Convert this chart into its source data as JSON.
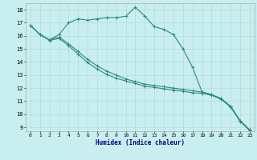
{
  "title": "",
  "xlabel": "Humidex (Indice chaleur)",
  "ylabel": "",
  "bg_color": "#c8eef0",
  "grid_color": "#b8dfe0",
  "line_color": "#2e8b7a",
  "xlim": [
    -0.5,
    23.5
  ],
  "ylim": [
    8.7,
    18.5
  ],
  "yticks": [
    9,
    10,
    11,
    12,
    13,
    14,
    15,
    16,
    17,
    18
  ],
  "xticks": [
    0,
    1,
    2,
    3,
    4,
    5,
    6,
    7,
    8,
    9,
    10,
    11,
    12,
    13,
    14,
    15,
    16,
    17,
    18,
    19,
    20,
    21,
    22,
    23
  ],
  "series": [
    {
      "x": [
        0,
        1,
        2,
        3,
        4,
        5,
        6,
        7,
        8,
        9,
        10,
        11,
        12,
        13,
        14,
        15,
        16,
        17,
        18,
        19,
        20,
        21,
        22,
        23
      ],
      "y": [
        16.8,
        16.1,
        15.7,
        16.1,
        17.0,
        17.3,
        17.2,
        17.3,
        17.4,
        17.4,
        17.5,
        18.2,
        17.5,
        16.7,
        16.5,
        16.1,
        15.0,
        13.6,
        11.7,
        11.5,
        11.2,
        10.6,
        9.5,
        8.8
      ]
    },
    {
      "x": [
        0,
        1,
        2,
        3,
        4,
        5,
        6,
        7,
        8,
        9,
        10,
        11,
        12,
        13,
        14,
        15,
        16,
        17,
        18,
        19,
        20,
        21,
        22,
        23
      ],
      "y": [
        16.8,
        16.1,
        15.7,
        15.9,
        15.4,
        14.8,
        14.2,
        13.7,
        13.3,
        13.0,
        12.7,
        12.5,
        12.3,
        12.2,
        12.1,
        12.0,
        11.9,
        11.8,
        11.7,
        11.5,
        11.2,
        10.6,
        9.5,
        8.8
      ]
    },
    {
      "x": [
        0,
        1,
        2,
        3,
        4,
        5,
        6,
        7,
        8,
        9,
        10,
        11,
        12,
        13,
        14,
        15,
        16,
        17,
        18,
        19,
        20,
        21,
        22,
        23
      ],
      "y": [
        16.8,
        16.1,
        15.65,
        15.8,
        15.25,
        14.6,
        13.95,
        13.45,
        13.05,
        12.75,
        12.55,
        12.35,
        12.15,
        12.05,
        11.95,
        11.85,
        11.75,
        11.65,
        11.6,
        11.45,
        11.15,
        10.55,
        9.45,
        8.75
      ]
    }
  ]
}
